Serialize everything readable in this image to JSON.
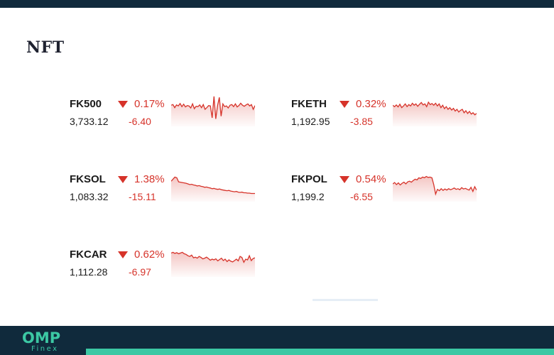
{
  "page": {
    "title": "NFT"
  },
  "brand": {
    "logo_main": "OMP",
    "logo_sub": "Finex",
    "accent_color": "#3cc8a4",
    "dark_color": "#102a3c"
  },
  "down_color": "#d6332a",
  "tickers": [
    {
      "symbol": "FK500",
      "percent": "0.17%",
      "price": "3,733.12",
      "change": "-6.40",
      "direction": "down",
      "sparkline": [
        62,
        64,
        55,
        63,
        60,
        67,
        58,
        65,
        57,
        61,
        60,
        54,
        66,
        52,
        59,
        58,
        63,
        55,
        64,
        50,
        55,
        61,
        60,
        25,
        88,
        22,
        61,
        85,
        30,
        66,
        58,
        60,
        54,
        62,
        64,
        58,
        66,
        57,
        61,
        68,
        62,
        59,
        63,
        66,
        60,
        64,
        50,
        61
      ]
    },
    {
      "symbol": "FKETH",
      "percent": "0.32%",
      "price": "1,192.95",
      "change": "-3.85",
      "direction": "down",
      "sparkline": [
        62,
        58,
        63,
        57,
        65,
        55,
        60,
        66,
        58,
        64,
        60,
        68,
        62,
        66,
        59,
        65,
        70,
        63,
        66,
        58,
        71,
        64,
        67,
        62,
        68,
        60,
        66,
        55,
        62,
        52,
        58,
        50,
        55,
        48,
        53,
        45,
        50,
        42,
        47,
        50,
        40,
        46,
        38,
        44,
        36,
        40,
        34,
        38
      ]
    },
    {
      "symbol": "FKSOL",
      "percent": "1.38%",
      "price": "1,083.32",
      "change": "-15.11",
      "direction": "down",
      "sparkline": [
        60,
        66,
        72,
        70,
        58,
        57,
        56,
        55,
        54,
        52,
        50,
        51,
        49,
        48,
        46,
        47,
        45,
        44,
        42,
        43,
        41,
        40,
        38,
        39,
        37,
        36,
        37,
        35,
        34,
        33,
        32,
        33,
        31,
        30,
        29,
        30,
        28,
        27,
        28,
        26,
        26,
        25,
        25,
        24,
        24,
        24
      ]
    },
    {
      "symbol": "FKPOL",
      "percent": "0.54%",
      "price": "1,199.2",
      "change": "-6.55",
      "direction": "down",
      "sparkline": [
        52,
        56,
        50,
        55,
        49,
        54,
        57,
        52,
        58,
        60,
        57,
        62,
        66,
        64,
        70,
        68,
        72,
        70,
        74,
        71,
        72,
        70,
        50,
        22,
        36,
        32,
        38,
        33,
        37,
        34,
        38,
        35,
        37,
        40,
        36,
        38,
        35,
        41,
        37,
        39,
        36,
        34,
        42,
        30,
        44,
        34
      ]
    },
    {
      "symbol": "FKCAR",
      "percent": "0.62%",
      "price": "1,112.28",
      "change": "-6.97",
      "direction": "down",
      "sparkline": [
        70,
        72,
        69,
        71,
        68,
        70,
        72,
        68,
        66,
        62,
        60,
        64,
        56,
        58,
        55,
        60,
        57,
        53,
        55,
        58,
        54,
        49,
        52,
        50,
        53,
        47,
        51,
        55,
        48,
        52,
        45,
        50,
        46,
        44,
        48,
        52,
        47,
        60,
        57,
        43,
        52,
        50,
        62,
        48,
        54,
        56
      ]
    }
  ]
}
